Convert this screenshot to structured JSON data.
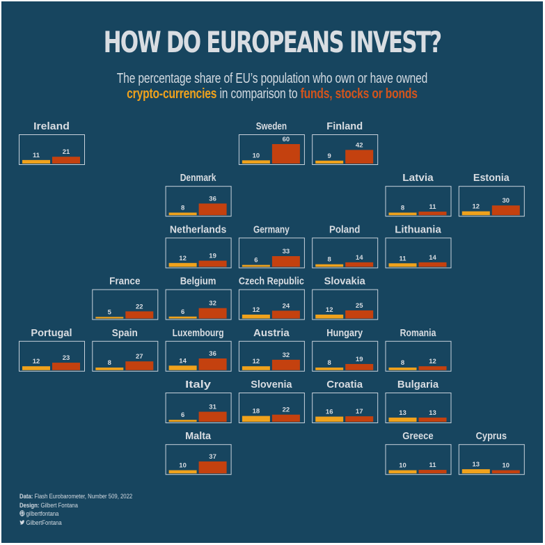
{
  "title": "HOW DO EUROPEANS INVEST?",
  "subtitle": {
    "line1": "The percentage share of EU’s population who own or have owned",
    "crypto_label": "crypto-currencies",
    "middle": " in comparison to ",
    "funds_label": "funds, stocks or bonds"
  },
  "colors": {
    "background": "#17455f",
    "crypto": "#f0a21c",
    "funds": "#c4410f",
    "panel_border": "#c9d3dc"
  },
  "footer": {
    "data_label": "Data:",
    "data_value": "Flash Eurobarometer, Number 509, 2022",
    "design_label": "Design:",
    "design_value": "Gilbert Fontana",
    "github_icon": "github-icon",
    "github_handle": "gilbertfontana",
    "twitter_icon": "twitter-icon",
    "twitter_handle": "GilbertFontana"
  },
  "chart_data": {
    "type": "bar",
    "title": "HOW DO EUROPEANS INVEST?",
    "layout": "tile-grid map of EU countries, one small bar chart per country",
    "series": [
      {
        "name": "crypto-currencies",
        "color": "#f0a21c"
      },
      {
        "name": "funds, stocks or bonds",
        "color": "#c4410f"
      }
    ],
    "unit": "percent of population",
    "ylim": [
      0,
      60
    ],
    "countries": [
      {
        "name": "Ireland",
        "col": 0,
        "row": 0,
        "crypto": 11,
        "funds": 21
      },
      {
        "name": "Sweden",
        "col": 3,
        "row": 0,
        "crypto": 10,
        "funds": 60
      },
      {
        "name": "Finland",
        "col": 4,
        "row": 0,
        "crypto": 9,
        "funds": 42
      },
      {
        "name": "Denmark",
        "col": 2,
        "row": 1,
        "crypto": 8,
        "funds": 36
      },
      {
        "name": "Latvia",
        "col": 5,
        "row": 1,
        "crypto": 8,
        "funds": 11
      },
      {
        "name": "Estonia",
        "col": 6,
        "row": 1,
        "crypto": 12,
        "funds": 30
      },
      {
        "name": "Netherlands",
        "col": 2,
        "row": 2,
        "crypto": 12,
        "funds": 19
      },
      {
        "name": "Germany",
        "col": 3,
        "row": 2,
        "crypto": 6,
        "funds": 33
      },
      {
        "name": "Poland",
        "col": 4,
        "row": 2,
        "crypto": 8,
        "funds": 14
      },
      {
        "name": "Lithuania",
        "col": 5,
        "row": 2,
        "crypto": 11,
        "funds": 14
      },
      {
        "name": "France",
        "col": 1,
        "row": 3,
        "crypto": 5,
        "funds": 22
      },
      {
        "name": "Belgium",
        "col": 2,
        "row": 3,
        "crypto": 6,
        "funds": 32
      },
      {
        "name": "Czech Republic",
        "col": 3,
        "row": 3,
        "crypto": 12,
        "funds": 24
      },
      {
        "name": "Slovakia",
        "col": 4,
        "row": 3,
        "crypto": 12,
        "funds": 25
      },
      {
        "name": "Portugal",
        "col": 0,
        "row": 4,
        "crypto": 12,
        "funds": 23
      },
      {
        "name": "Spain",
        "col": 1,
        "row": 4,
        "crypto": 8,
        "funds": 27
      },
      {
        "name": "Luxembourg",
        "col": 2,
        "row": 4,
        "crypto": 14,
        "funds": 36
      },
      {
        "name": "Austria",
        "col": 3,
        "row": 4,
        "crypto": 12,
        "funds": 32
      },
      {
        "name": "Hungary",
        "col": 4,
        "row": 4,
        "crypto": 8,
        "funds": 19
      },
      {
        "name": "Romania",
        "col": 5,
        "row": 4,
        "crypto": 8,
        "funds": 12
      },
      {
        "name": "Italy",
        "col": 2,
        "row": 5,
        "crypto": 6,
        "funds": 31
      },
      {
        "name": "Slovenia",
        "col": 3,
        "row": 5,
        "crypto": 18,
        "funds": 22
      },
      {
        "name": "Croatia",
        "col": 4,
        "row": 5,
        "crypto": 16,
        "funds": 17
      },
      {
        "name": "Bulgaria",
        "col": 5,
        "row": 5,
        "crypto": 13,
        "funds": 13
      },
      {
        "name": "Malta",
        "col": 2,
        "row": 6,
        "crypto": 10,
        "funds": 37
      },
      {
        "name": "Greece",
        "col": 5,
        "row": 6,
        "crypto": 10,
        "funds": 11
      },
      {
        "name": "Cyprus",
        "col": 6,
        "row": 6,
        "crypto": 13,
        "funds": 10
      }
    ]
  }
}
